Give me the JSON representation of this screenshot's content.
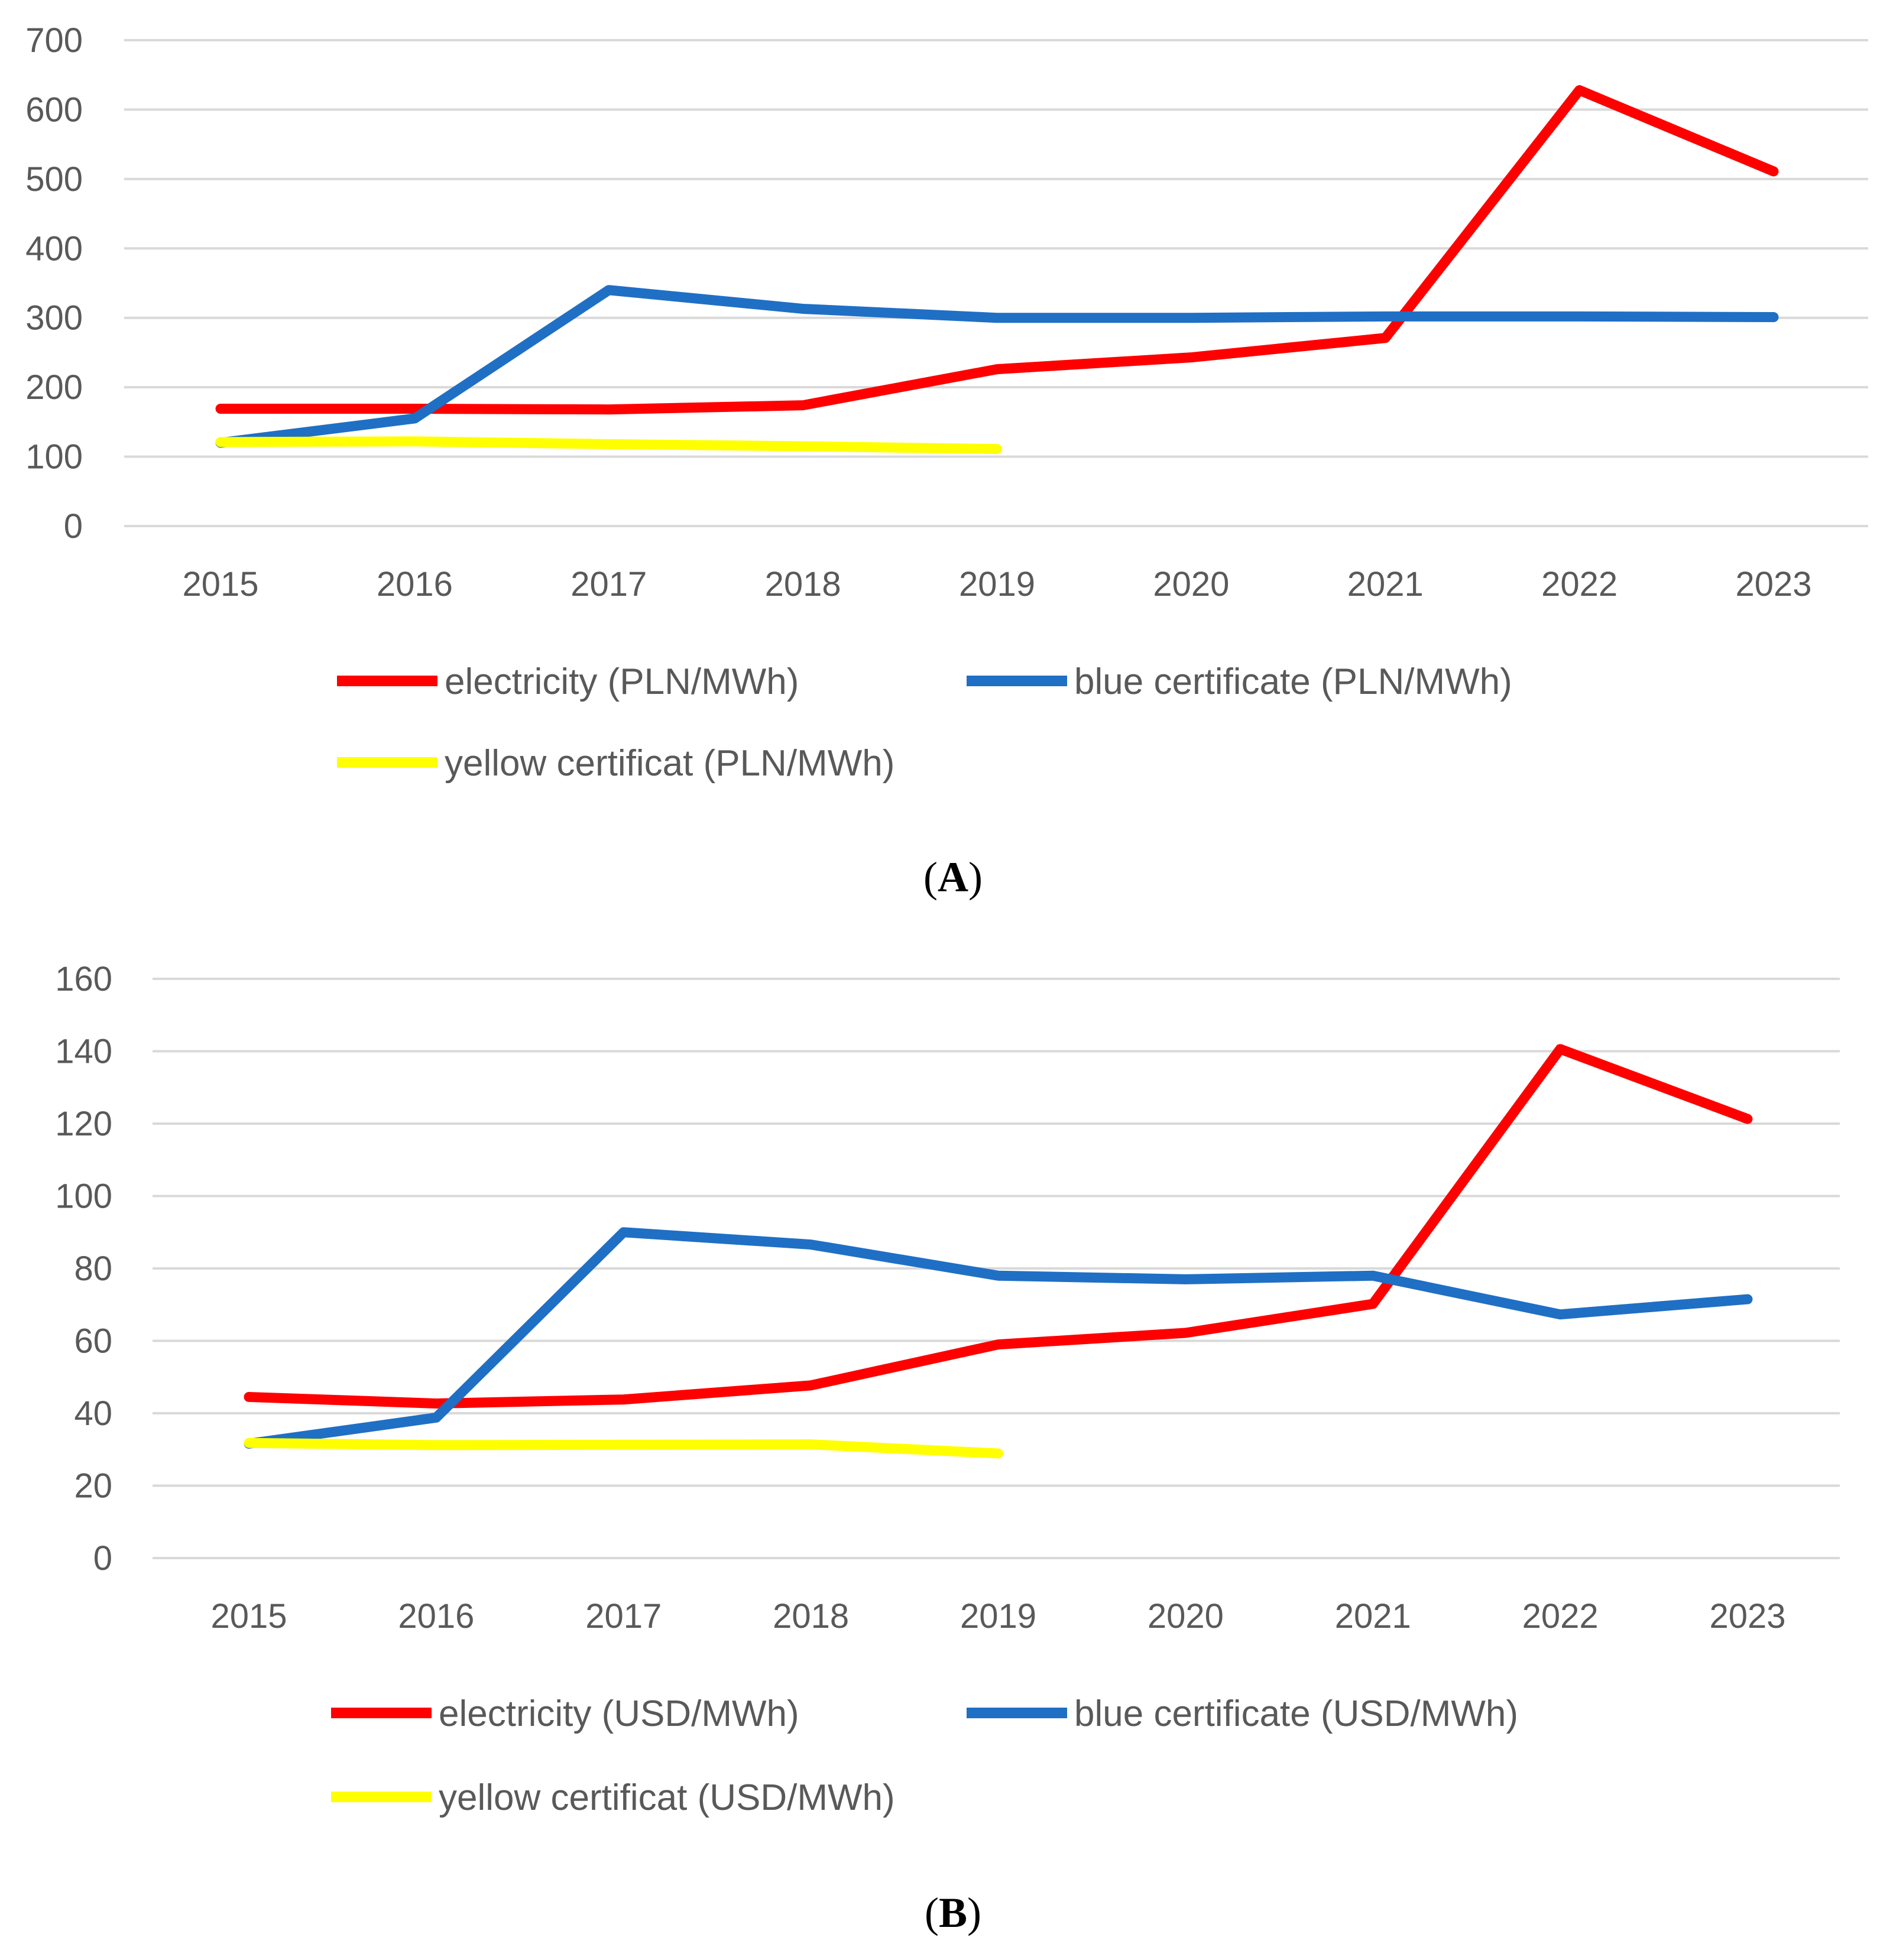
{
  "chart_data": [
    {
      "panel_label": "A",
      "type": "line",
      "categories": [
        "2015",
        "2016",
        "2017",
        "2018",
        "2019",
        "2020",
        "2021",
        "2022",
        "2023"
      ],
      "ylim": [
        0,
        700
      ],
      "yticks": [
        "0",
        "100",
        "200",
        "300",
        "400",
        "500",
        "600",
        "700"
      ],
      "grid": true,
      "legend_position": "bottom",
      "series": [
        {
          "name": "electricity (PLN/MWh)",
          "color": "#ff0000",
          "values": [
            169,
            169,
            168,
            174,
            226,
            243,
            271,
            628,
            511
          ]
        },
        {
          "name": "blue certificate (PLN/MWh)",
          "color": "#1f6fc5",
          "values": [
            120,
            155,
            340,
            313,
            300,
            300,
            302,
            302,
            301
          ]
        },
        {
          "name": "yellow certificat (PLN/MWh)",
          "color": "#ffff00",
          "values": [
            121,
            122,
            118,
            115,
            111,
            null,
            null,
            null,
            null
          ]
        }
      ]
    },
    {
      "panel_label": "B",
      "type": "line",
      "categories": [
        "2015",
        "2016",
        "2017",
        "2018",
        "2019",
        "2020",
        "2021",
        "2022",
        "2023"
      ],
      "ylim": [
        0,
        160
      ],
      "yticks": [
        "0",
        "20",
        "40",
        "60",
        "80",
        "100",
        "120",
        "140",
        "160"
      ],
      "grid": true,
      "legend_position": "bottom",
      "series": [
        {
          "name": "electricity (USD/MWh)",
          "color": "#ff0000",
          "values": [
            44.5,
            42.7,
            43.8,
            47.7,
            59,
            62.2,
            70.2,
            140.6,
            121.3
          ]
        },
        {
          "name": "blue certificate (USD/MWh)",
          "color": "#1f6fc5",
          "values": [
            31.6,
            38.8,
            90,
            86.6,
            78,
            77,
            78,
            67.3,
            71.5
          ]
        },
        {
          "name": "yellow certificat (USD/MWh)",
          "color": "#ffff00",
          "values": [
            31.8,
            31.2,
            31.3,
            31.4,
            28.9,
            null,
            null,
            null,
            null
          ]
        }
      ]
    }
  ]
}
